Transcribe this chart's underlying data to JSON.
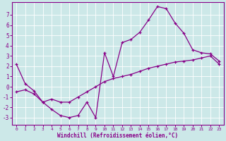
{
  "xlabel": "Windchill (Refroidissement éolien,°C)",
  "bg_color": "#cce8e8",
  "line_color": "#880088",
  "grid_color": "#aad4d4",
  "xlim": [
    -0.5,
    23.5
  ],
  "ylim": [
    -3.7,
    8.2
  ],
  "xticks": [
    0,
    1,
    2,
    3,
    4,
    5,
    6,
    7,
    8,
    9,
    10,
    11,
    12,
    13,
    14,
    15,
    16,
    17,
    18,
    19,
    20,
    21,
    22,
    23
  ],
  "yticks": [
    -3,
    -2,
    -1,
    0,
    1,
    2,
    3,
    4,
    5,
    6,
    7
  ],
  "line1_x": [
    0,
    1,
    2,
    3,
    4,
    5,
    6,
    7,
    8,
    9,
    10,
    11,
    12,
    13,
    14,
    15,
    16,
    17,
    18,
    19,
    20,
    21,
    22,
    23
  ],
  "line1_y": [
    2.2,
    0.3,
    -0.4,
    -1.5,
    -2.2,
    -2.8,
    -3.0,
    -2.8,
    -1.5,
    -3.0,
    3.3,
    1.0,
    4.3,
    4.6,
    5.3,
    6.5,
    7.8,
    7.6,
    6.2,
    5.2,
    3.6,
    3.3,
    3.2,
    2.5
  ],
  "line2_x": [
    0,
    1,
    2,
    3,
    4,
    5,
    6,
    7,
    8,
    9,
    10,
    11,
    12,
    13,
    14,
    15,
    16,
    17,
    18,
    19,
    20,
    21,
    22,
    23
  ],
  "line2_y": [
    -0.5,
    -0.3,
    -0.7,
    -1.5,
    -1.2,
    -1.5,
    -1.5,
    -1.0,
    -0.5,
    0.0,
    0.5,
    0.8,
    1.0,
    1.2,
    1.5,
    1.8,
    2.0,
    2.2,
    2.4,
    2.5,
    2.6,
    2.8,
    3.0,
    2.2
  ]
}
